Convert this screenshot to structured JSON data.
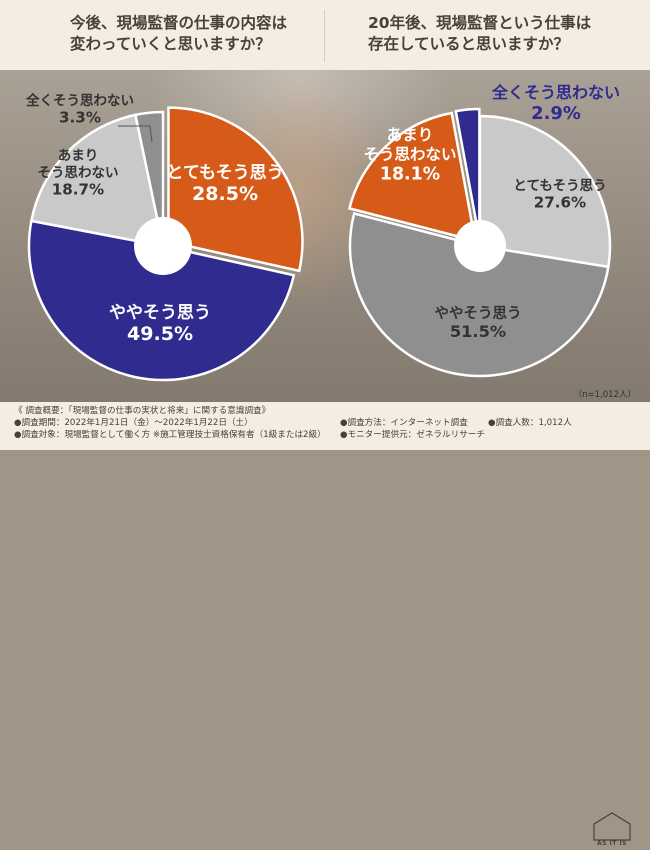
{
  "header": {
    "q1": [
      "今後、現場監督の仕事の内容は",
      "変わっていくと思いますか？"
    ],
    "q2": [
      "20年後、現場監督という仕事は",
      "存在していると思いますか？"
    ]
  },
  "sample_note": "（n=1,012人）",
  "footer": {
    "summary": "《 調査概要：「現場監督の仕事の実状と将来」に関する意識調査》",
    "period": "●調査期間：2022年1月21日（金）〜2022年1月22日（土）",
    "target": "●調査対象：現場監督として働く方 ※施工管理技士資格保有者（1級または2級）",
    "method": "●調査方法：インターネット調査",
    "count": "●調査人数：1,012人",
    "provider": "●モニター提供元：ゼネラルリサーチ",
    "logo": "AS IT IS"
  },
  "chart_data": [
    {
      "type": "pie",
      "title": "今後、現場監督の仕事の内容は変わっていくと思いますか？",
      "unit": "%",
      "slices": [
        {
          "label": "とてもそう思う",
          "value": 28.5,
          "color": "#d65b18"
        },
        {
          "label": "ややそう思う",
          "value": 49.5,
          "color": "#2f2b8f"
        },
        {
          "label": "あまりそう思わない",
          "value": 18.7,
          "color": "#c9c9c9"
        },
        {
          "label": "全くそう思わない",
          "value": 3.3,
          "color": "#8f8f8f"
        }
      ]
    },
    {
      "type": "pie",
      "title": "20年後、現場監督という仕事は存在していると思いますか？",
      "unit": "%",
      "slices": [
        {
          "label": "とてもそう思う",
          "value": 27.6,
          "color": "#c9c9c9"
        },
        {
          "label": "ややそう思う",
          "value": 51.5,
          "color": "#8f8f8f"
        },
        {
          "label": "あまりそう思わない",
          "value": 18.1,
          "color": "#d65b18"
        },
        {
          "label": "全くそう思わない",
          "value": 2.9,
          "color": "#2f2b8f"
        }
      ]
    }
  ]
}
